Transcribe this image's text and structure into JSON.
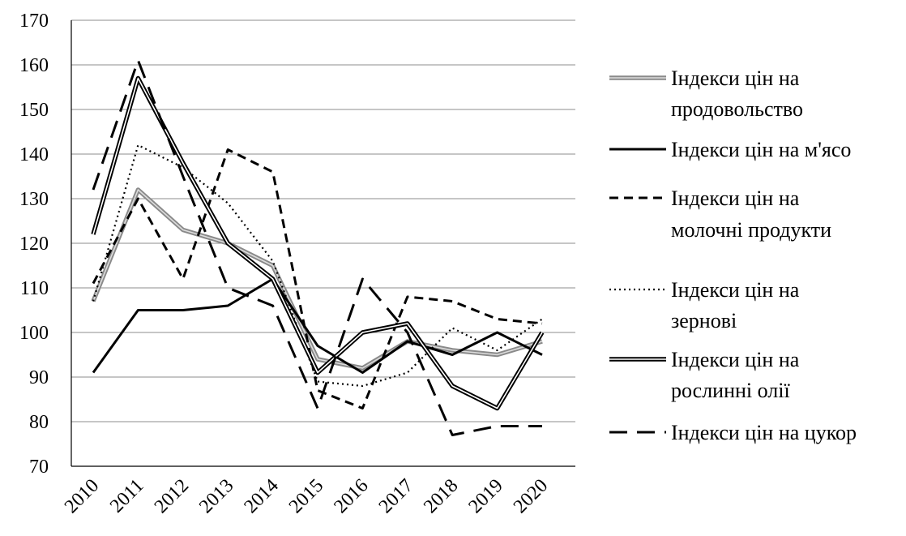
{
  "chart_data": {
    "type": "line",
    "title": "",
    "xlabel": "",
    "ylabel": "",
    "ylim": [
      70,
      170
    ],
    "yticks": [
      70,
      80,
      90,
      100,
      110,
      120,
      130,
      140,
      150,
      160,
      170
    ],
    "grid": "horizontal",
    "legend_position": "right",
    "categories": [
      "2010",
      "2011",
      "2012",
      "2013",
      "2014",
      "2015",
      "2016",
      "2017",
      "2018",
      "2019",
      "2020"
    ],
    "series": [
      {
        "name_lines": [
          "Індекси цін на",
          "продовольство"
        ],
        "style": "double-gray",
        "color": "#999999",
        "values": [
          107,
          132,
          123,
          120,
          115,
          94,
          92,
          98,
          96,
          95,
          98
        ]
      },
      {
        "name_lines": [
          "Індекси цін на м'ясо"
        ],
        "style": "solid-thick",
        "color": "#000000",
        "values": [
          91,
          105,
          105,
          106,
          112,
          97,
          91,
          98,
          95,
          100,
          95
        ]
      },
      {
        "name_lines": [
          "Індекси цін на",
          "молочні продукти"
        ],
        "style": "dashed-short",
        "color": "#000000",
        "values": [
          111,
          130,
          112,
          141,
          136,
          87,
          83,
          108,
          107,
          103,
          102
        ]
      },
      {
        "name_lines": [
          "Індекси цін на",
          "зернові"
        ],
        "style": "dotted",
        "color": "#000000",
        "values": [
          107,
          142,
          137,
          129,
          116,
          89,
          88,
          91,
          101,
          96,
          103
        ]
      },
      {
        "name_lines": [
          "Індекси цін на",
          "рослинні олії"
        ],
        "style": "double-black",
        "color": "#000000",
        "values": [
          122,
          157,
          138,
          120,
          112,
          91,
          100,
          102,
          88,
          83,
          100
        ]
      },
      {
        "name_lines": [
          "Індекси цін на цукор"
        ],
        "style": "dashed-long",
        "color": "#000000",
        "values": [
          132,
          161,
          135,
          110,
          106,
          83,
          112,
          100,
          77,
          79,
          79
        ]
      }
    ]
  }
}
